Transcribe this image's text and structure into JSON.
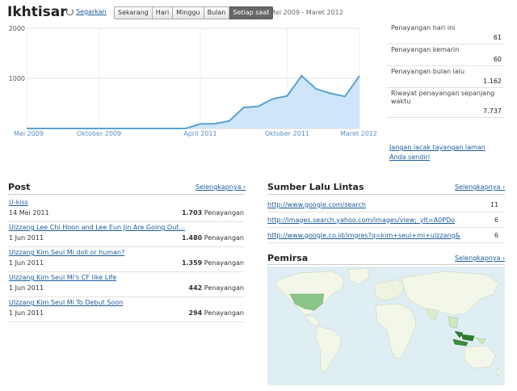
{
  "header": {
    "title": "Ikhtisar",
    "refresh_label": "Segarkan",
    "ranges": [
      {
        "label": "Sekarang",
        "selected": false
      },
      {
        "label": "Hari",
        "selected": false
      },
      {
        "label": "Minggu",
        "selected": false
      },
      {
        "label": "Bulan",
        "selected": false
      },
      {
        "label": "Setiap saat",
        "selected": true
      }
    ],
    "date_range": "Mei 2009 - Maret 2012"
  },
  "chart_data": {
    "type": "area",
    "y_ticks": [
      "2000",
      "1000"
    ],
    "ylim": [
      0,
      2000
    ],
    "x_tick_labels": [
      "Mei 2009",
      "Oktober 2009",
      "April 2011",
      "Oktober 2011",
      "Maret 2012"
    ],
    "x": [
      "2009-05",
      "2009-06",
      "2009-07",
      "2009-08",
      "2009-09",
      "2009-10",
      "2009-11",
      "2009-12",
      "2010-01",
      "2010-02",
      "2010-03",
      "2010-04",
      "2011-04",
      "2011-05",
      "2011-06",
      "2011-07",
      "2011-08",
      "2011-09",
      "2011-10",
      "2011-11",
      "2011-12",
      "2012-01",
      "2012-02",
      "2012-03"
    ],
    "values": [
      0,
      0,
      0,
      0,
      0,
      0,
      0,
      0,
      0,
      0,
      0,
      0,
      90,
      95,
      150,
      420,
      440,
      590,
      650,
      1050,
      790,
      700,
      640,
      1050
    ],
    "colors": {
      "line": "#5aa0d0",
      "fill": "#cfe5fa"
    }
  },
  "stats": [
    {
      "label": "Penayangan hari ini",
      "value": "61"
    },
    {
      "label": "Penayangan kemarin",
      "value": "60"
    },
    {
      "label": "Penayangan bulan lalu",
      "value": "1.162"
    },
    {
      "label": "Riwayat penayangan sepanjang waktu",
      "value": "7.737"
    }
  ],
  "traffic_link": "Jangan lacak tayangan laman Anda sendiri",
  "posts": {
    "title": "Post",
    "more": "Selengkapnya ›",
    "items": [
      {
        "title": "U-kiss",
        "date": "14 Mei 2011",
        "views": "1.703",
        "unit": "Penayangan"
      },
      {
        "title": "Ulzzang Lee Chi Hoon and Lee Eun Jin Are Going Out...",
        "date": "1 Jun 2011",
        "views": "1.480",
        "unit": "Penayangan"
      },
      {
        "title": "Ulzzang Kim Seul Mi doll or human?",
        "date": "1 Jun 2011",
        "views": "1.359",
        "unit": "Penayangan"
      },
      {
        "title": "Ulzzang Kim Seul Mi's CF like Life",
        "date": "1 Jun 2011",
        "views": "442",
        "unit": "Penayangan"
      },
      {
        "title": "Ulzzang Kim Seul Mi To Debut Soon",
        "date": "1 Jun 2011",
        "views": "294",
        "unit": "Penayangan"
      }
    ]
  },
  "sources": {
    "title": "Sumber Lalu Lintas",
    "more": "Selengkapnya ›",
    "items": [
      {
        "url": "http://www.google.com/search",
        "count": "11"
      },
      {
        "url": "http://images.search.yahoo.com/images/view;_ylt=A0PDo",
        "count": "6"
      },
      {
        "url": "http://www.google.co.id/imgres?q=kim+seul+mi+ulzzang&",
        "count": "6"
      }
    ]
  },
  "audience": {
    "title": "Pemirsa",
    "more": "Selengkapnya ›"
  }
}
